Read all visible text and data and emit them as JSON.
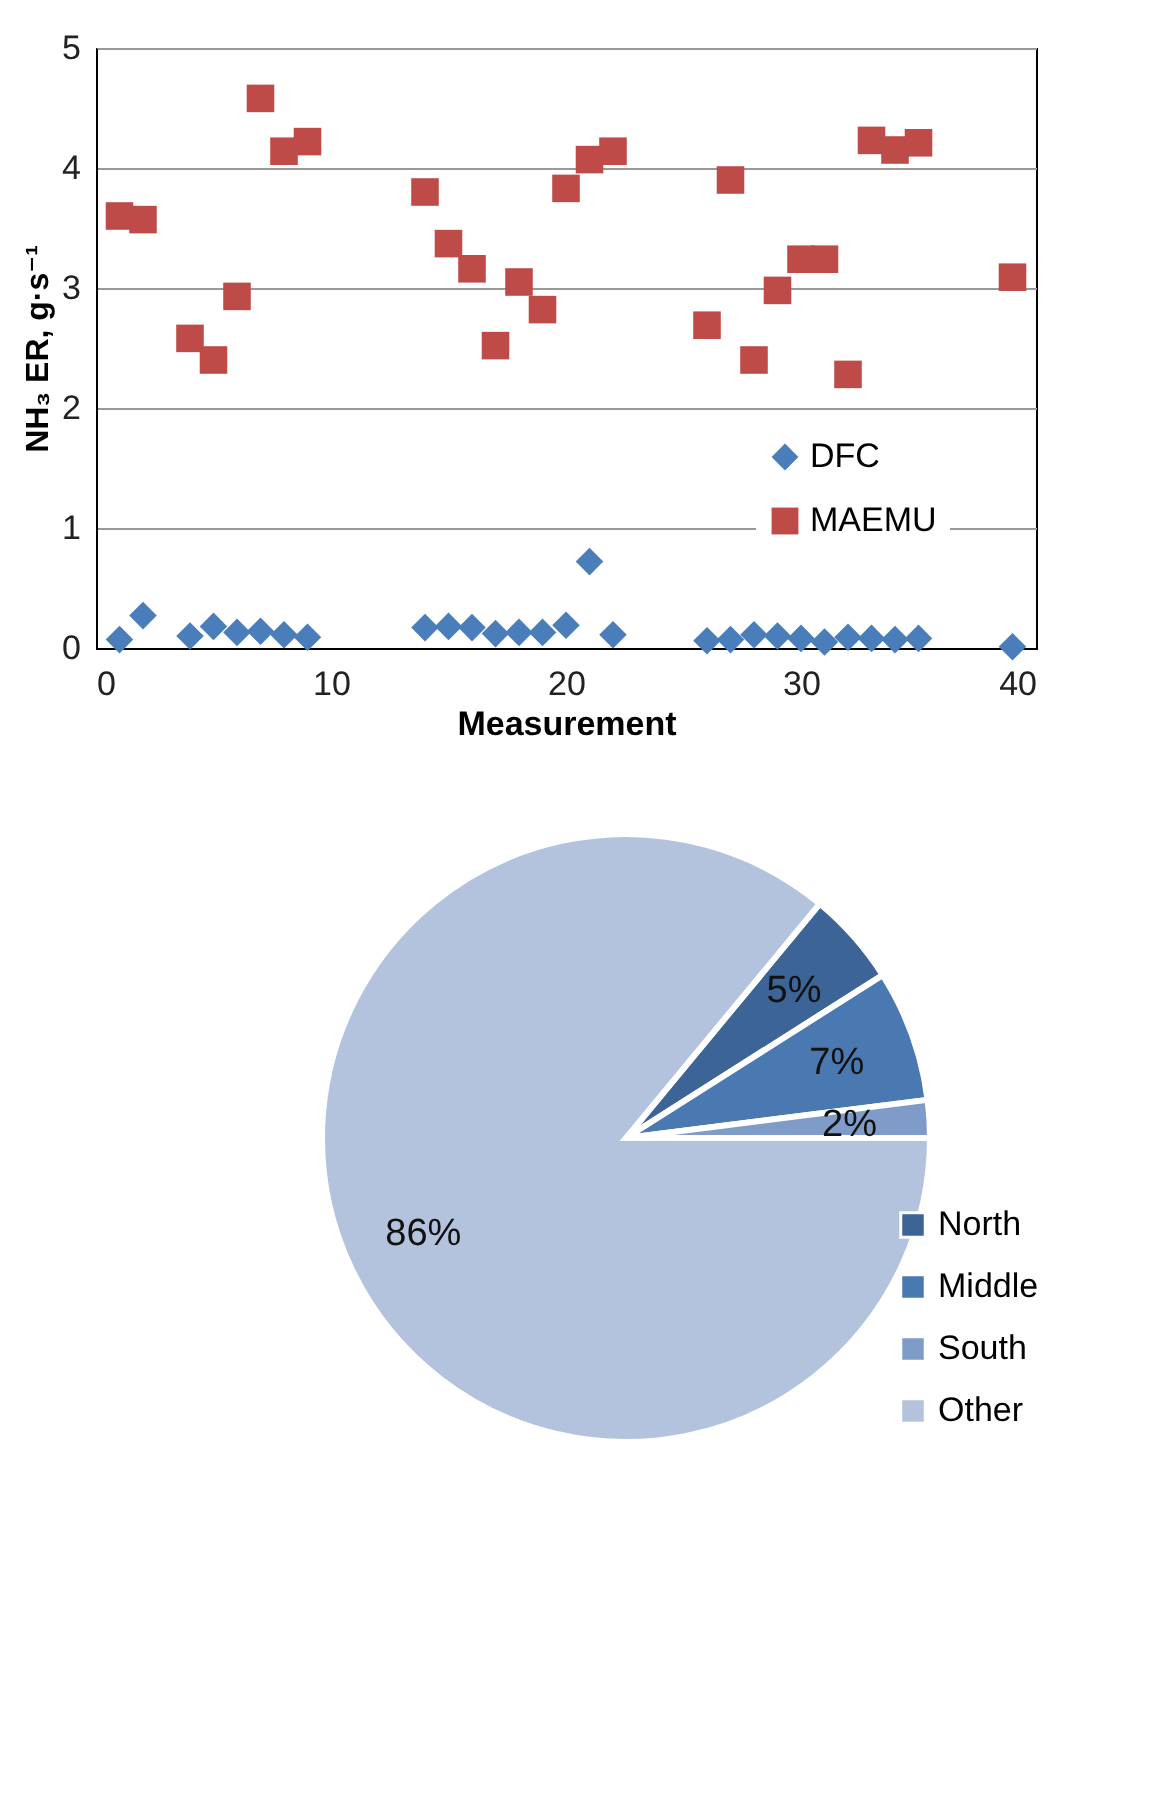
{
  "chart_data": [
    {
      "type": "scatter",
      "xlabel": "Measurement",
      "ylabel": "NH₃ ER, g·s⁻¹",
      "xlim": [
        0,
        40
      ],
      "xticks": [
        0,
        10,
        20,
        30,
        40
      ],
      "ylim": [
        0,
        5
      ],
      "yticks": [
        0,
        1,
        2,
        3,
        4,
        5
      ],
      "grid": "y",
      "legend": "right",
      "series": [
        {
          "name": "DFC",
          "color": "#4a7ebb",
          "marker": "diamond",
          "x": [
            1,
            2,
            4,
            5,
            6,
            7,
            8,
            9,
            14,
            15,
            16,
            17,
            18,
            19,
            20,
            21,
            22,
            26,
            27,
            28,
            29,
            30,
            31,
            32,
            33,
            34,
            35,
            39
          ],
          "values": [
            0.07,
            0.27,
            0.1,
            0.18,
            0.13,
            0.14,
            0.11,
            0.09,
            0.17,
            0.18,
            0.17,
            0.12,
            0.13,
            0.13,
            0.19,
            0.72,
            0.11,
            0.06,
            0.07,
            0.11,
            0.1,
            0.08,
            0.05,
            0.09,
            0.08,
            0.07,
            0.08,
            0.01
          ]
        },
        {
          "name": "MAEMU",
          "color": "#be4b48",
          "marker": "square",
          "x": [
            1,
            2,
            4,
            5,
            6,
            7,
            8,
            9,
            14,
            15,
            16,
            17,
            18,
            19,
            20,
            21,
            22,
            26,
            27,
            28,
            29,
            30,
            31,
            32,
            33,
            34,
            35,
            39
          ],
          "values": [
            3.6,
            3.57,
            2.58,
            2.4,
            2.93,
            4.58,
            4.14,
            4.22,
            3.8,
            3.37,
            3.16,
            2.52,
            3.05,
            2.82,
            3.83,
            4.07,
            4.14,
            2.69,
            3.9,
            2.4,
            2.98,
            3.24,
            3.24,
            2.28,
            4.23,
            4.15,
            4.21,
            3.09
          ]
        }
      ]
    },
    {
      "type": "pie",
      "legend": "bottom right",
      "categories": [
        "North",
        "Middle",
        "South",
        "Other"
      ],
      "values": [
        5,
        7,
        2,
        86
      ],
      "value_labels": [
        "5%",
        "7%",
        "2%",
        "86%"
      ],
      "colors": [
        "#3c6496",
        "#4a78b0",
        "#7f9cc8",
        "#b4c3dd"
      ]
    }
  ]
}
